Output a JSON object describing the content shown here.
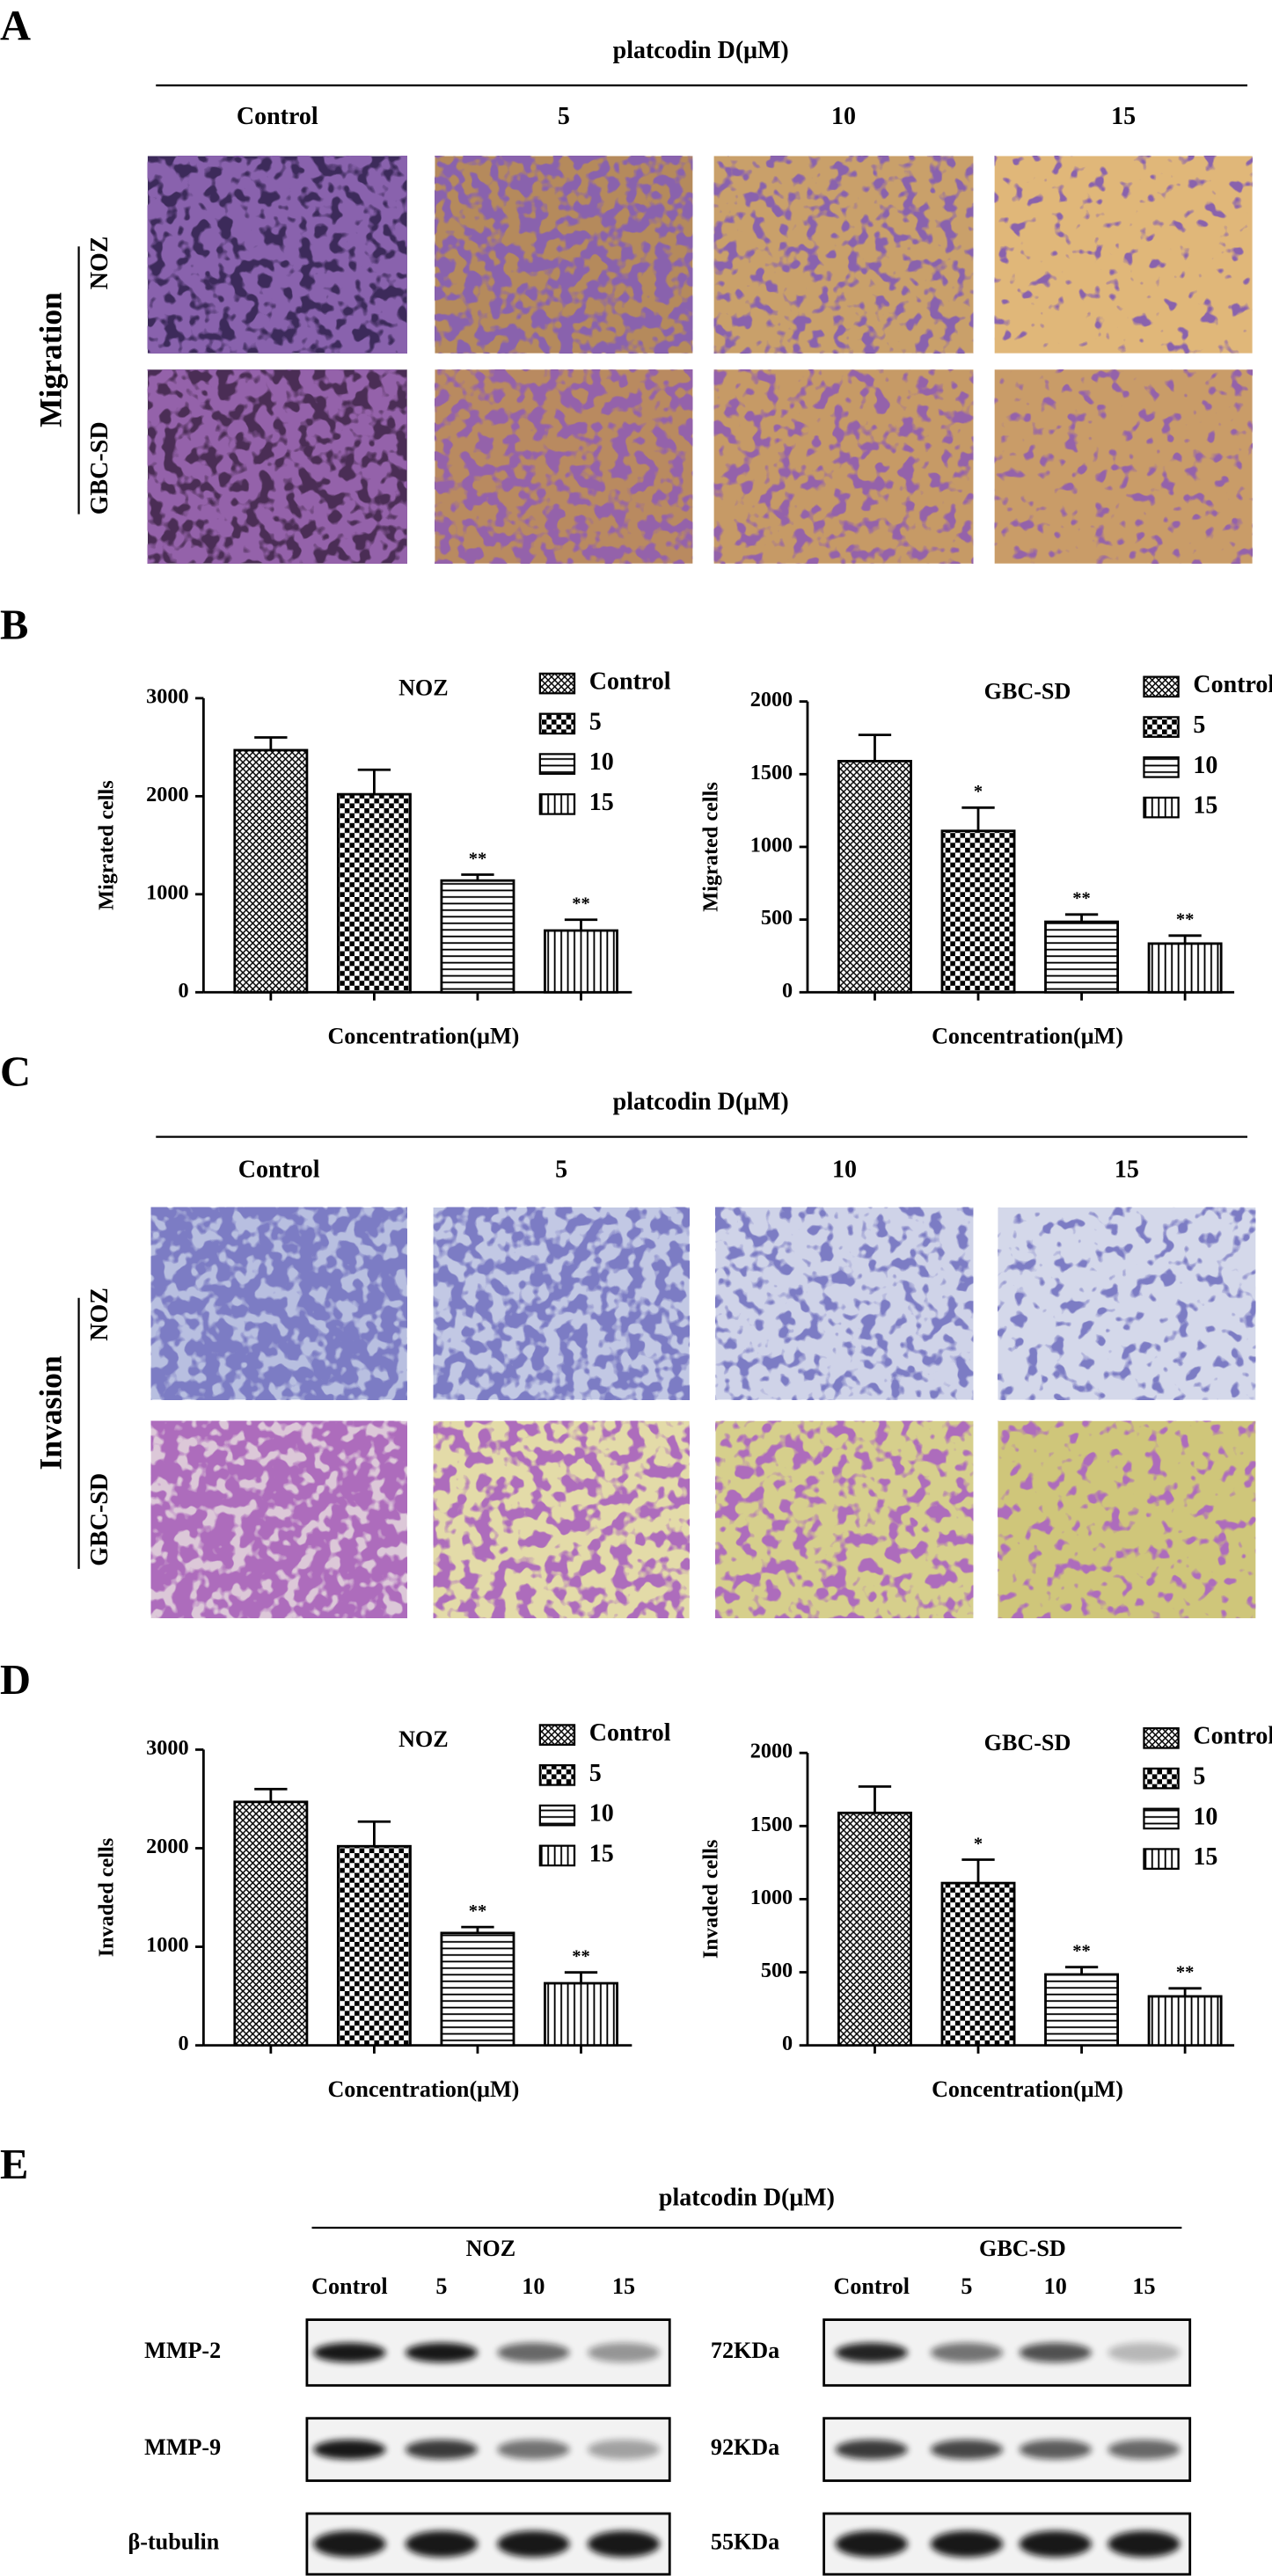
{
  "panels": {
    "A": {
      "letter": "A",
      "treatment": "platcodin D(μM)",
      "columns": [
        "Control",
        "5",
        "10",
        "15"
      ],
      "assay": "Migration",
      "rows": [
        "NOZ",
        "GBC-SD"
      ]
    },
    "B": {
      "letter": "B"
    },
    "C": {
      "letter": "C",
      "treatment": "platcodin D(μM)",
      "columns": [
        "Control",
        "5",
        "10",
        "15"
      ],
      "assay": "Invasion",
      "rows": [
        "NOZ",
        "GBC-SD"
      ]
    },
    "D": {
      "letter": "D"
    },
    "E": {
      "letter": "E",
      "treatment": "platcodin D(μM)",
      "groups": [
        "NOZ",
        "GBC-SD"
      ],
      "lanes": [
        "Control",
        "5",
        "10",
        "15"
      ],
      "proteins": [
        "MMP-2",
        "MMP-9",
        "β-tubulin"
      ],
      "sizes": [
        "72KDa",
        "92KDa",
        "55KDa"
      ]
    }
  },
  "chart_data": [
    {
      "type": "bar",
      "title": "NOZ",
      "ylabel": "Migrated cells",
      "xlabel": "Concentration(μM)",
      "categories": [
        "Control",
        "5",
        "10",
        "15"
      ],
      "values": [
        2470,
        2020,
        1140,
        630
      ],
      "errors": [
        130,
        250,
        60,
        110
      ],
      "annotations": [
        null,
        null,
        "**",
        "**"
      ],
      "fills": [
        "crosshatch",
        "checker",
        "hlines",
        "vlines"
      ],
      "color": "#000000",
      "ylim": [
        0,
        3000
      ],
      "yticks": [
        0,
        1000,
        2000,
        3000
      ]
    },
    {
      "type": "bar",
      "title": "GBC-SD",
      "ylabel": "Migrated cells",
      "xlabel": "Concentration(μM)",
      "categories": [
        "Control",
        "5",
        "10",
        "15"
      ],
      "values": [
        1590,
        1110,
        485,
        335
      ],
      "errors": [
        180,
        160,
        50,
        55
      ],
      "annotations": [
        null,
        "*",
        "**",
        "**"
      ],
      "fills": [
        "crosshatch",
        "checker",
        "hlines",
        "vlines"
      ],
      "color": "#000000",
      "ylim": [
        0,
        2000
      ],
      "yticks": [
        0,
        500,
        1000,
        1500,
        2000
      ]
    },
    {
      "type": "bar",
      "title": "NOZ",
      "ylabel": "Invaded cells",
      "xlabel": "Concentration(μM)",
      "categories": [
        "Control",
        "5",
        "10",
        "15"
      ],
      "values": [
        2470,
        2020,
        1140,
        630
      ],
      "errors": [
        130,
        250,
        60,
        110
      ],
      "annotations": [
        null,
        null,
        "**",
        "**"
      ],
      "fills": [
        "crosshatch",
        "checker",
        "hlines",
        "vlines"
      ],
      "color": "#000000",
      "ylim": [
        0,
        3000
      ],
      "yticks": [
        0,
        1000,
        2000,
        3000
      ]
    },
    {
      "type": "bar",
      "title": "GBC-SD",
      "ylabel": "Invaded cells",
      "xlabel": "Concentration(μM)",
      "categories": [
        "Control",
        "5",
        "10",
        "15"
      ],
      "values": [
        1590,
        1110,
        485,
        335
      ],
      "errors": [
        180,
        160,
        50,
        55
      ],
      "annotations": [
        null,
        "*",
        "**",
        "**"
      ],
      "fills": [
        "crosshatch",
        "checker",
        "hlines",
        "vlines"
      ],
      "color": "#000000",
      "ylim": [
        0,
        2000
      ],
      "yticks": [
        0,
        500,
        1000,
        1500,
        2000
      ]
    }
  ]
}
